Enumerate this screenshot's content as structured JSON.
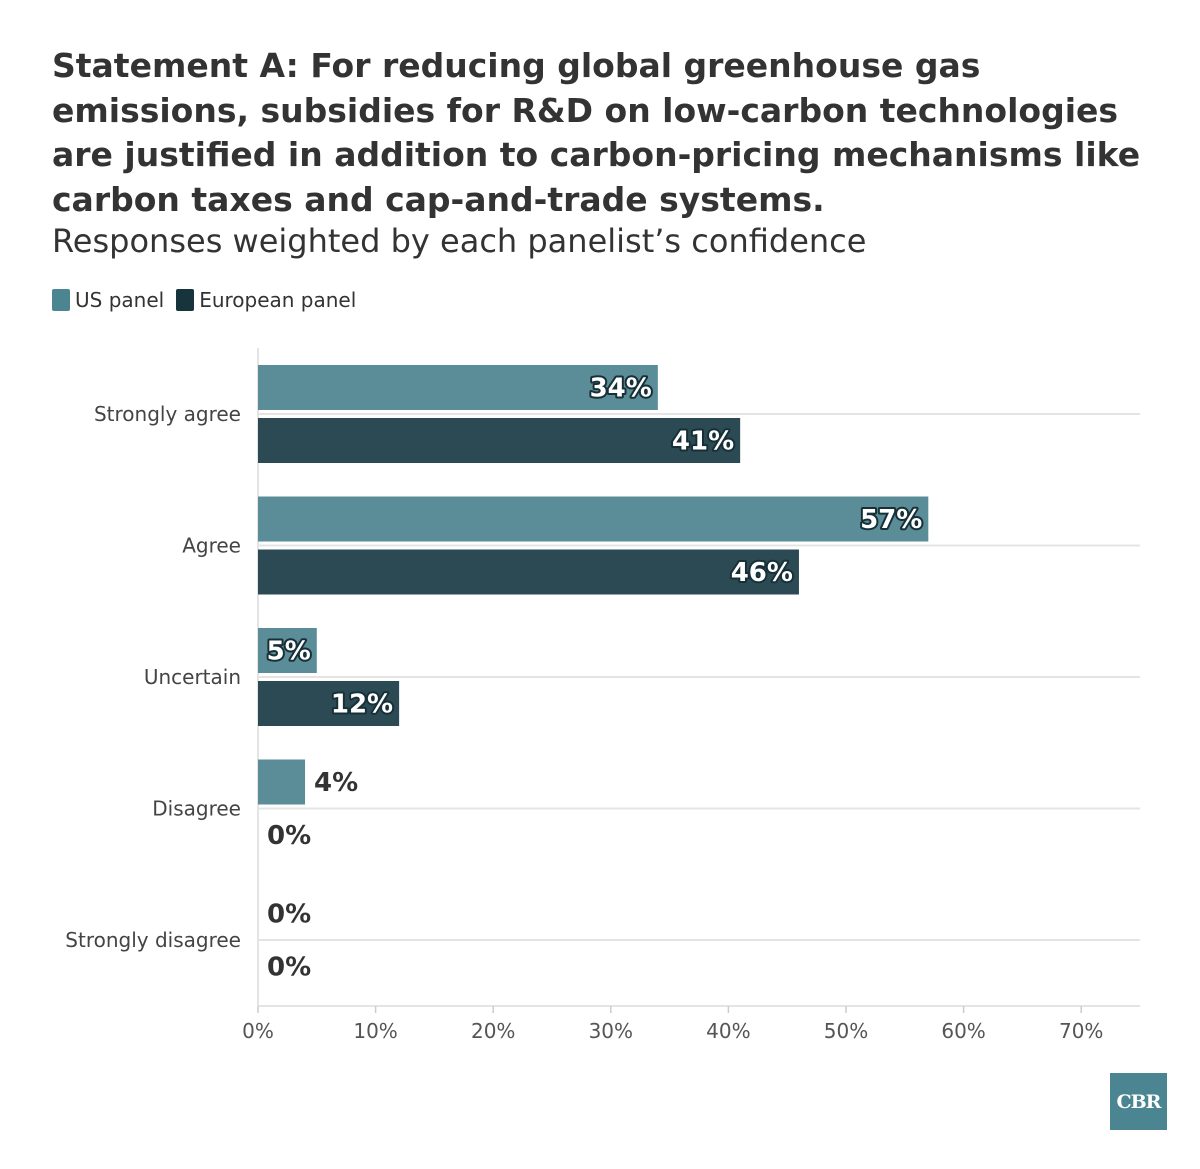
{
  "chart_data": {
    "type": "bar",
    "orientation": "horizontal",
    "title": "Statement A: For reducing global greenhouse gas emissions, subsidies for R&D on low-carbon technologies are justified in addition to carbon-pricing mechanisms like carbon taxes and cap-and-trade systems.",
    "subtitle": "Responses weighted by each panelist’s confidence",
    "categories": [
      "Strongly agree",
      "Agree",
      "Uncertain",
      "Disagree",
      "Strongly disagree"
    ],
    "series": [
      {
        "name": "US panel",
        "color": "#5a8d97",
        "values": [
          34,
          57,
          5,
          4,
          0
        ],
        "labels": [
          "34%",
          "57%",
          "5%",
          "4%",
          "0%"
        ]
      },
      {
        "name": "European panel",
        "color": "#2c4a53",
        "values": [
          41,
          46,
          12,
          0,
          0
        ],
        "labels": [
          "41%",
          "46%",
          "12%",
          "0%",
          "0%"
        ]
      }
    ],
    "xlim": [
      0,
      75
    ],
    "xticks": [
      0,
      10,
      20,
      30,
      40,
      50,
      60,
      70
    ],
    "xtick_labels": [
      "0%",
      "10%",
      "20%",
      "30%",
      "40%",
      "50%",
      "60%",
      "70%"
    ],
    "xlabel": "",
    "ylabel": "",
    "legend_position": "top-left",
    "grid": "horizontal"
  },
  "legend": {
    "us_label": "US panel",
    "eu_label": "European panel",
    "us_color": "#4a8591",
    "eu_color": "#17343d"
  },
  "logo": {
    "text": "CBR",
    "color": "#4a8591"
  }
}
